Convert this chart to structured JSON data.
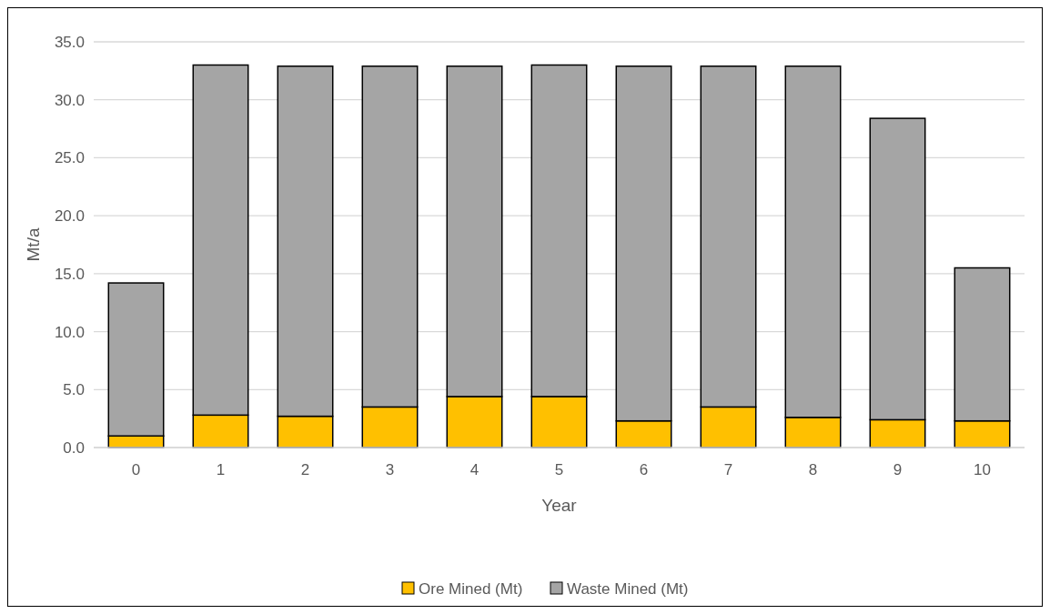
{
  "chart_data": {
    "type": "bar",
    "stacked": true,
    "xlabel": "Year",
    "ylabel": "Mt/a",
    "categories": [
      "0",
      "1",
      "2",
      "3",
      "4",
      "5",
      "6",
      "7",
      "8",
      "9",
      "10"
    ],
    "series": [
      {
        "name": "Ore Mined (Mt)",
        "color": "#ffc000",
        "values": [
          1.0,
          2.8,
          2.7,
          3.5,
          4.4,
          4.4,
          2.3,
          3.5,
          2.6,
          2.4,
          2.3
        ]
      },
      {
        "name": "Waste Mined (Mt)",
        "color": "#a5a5a5",
        "values": [
          13.2,
          30.2,
          30.2,
          29.4,
          28.5,
          28.6,
          30.6,
          29.4,
          30.3,
          26.0,
          13.2
        ]
      }
    ],
    "ylim": [
      0,
      35
    ],
    "yticks": [
      {
        "value": 0,
        "label": "0.0"
      },
      {
        "value": 5,
        "label": "5.0"
      },
      {
        "value": 10,
        "label": "10.0"
      },
      {
        "value": 15,
        "label": "15.0"
      },
      {
        "value": 20,
        "label": "20.0"
      },
      {
        "value": 25,
        "label": "25.0"
      },
      {
        "value": 30,
        "label": "30.0"
      },
      {
        "value": 35,
        "label": "35.0"
      }
    ],
    "grid": "y",
    "legend": "bottom"
  }
}
